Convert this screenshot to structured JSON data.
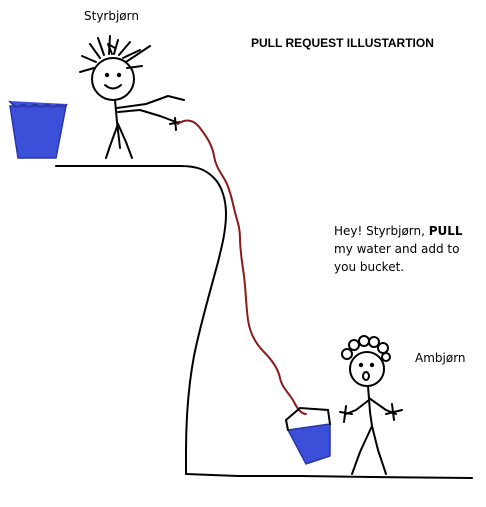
{
  "title": "PULL REQUEST ILLUSTARTION",
  "characters": {
    "top": {
      "name": "Styrbjørn"
    },
    "bottom": {
      "name": "Ambjørn"
    }
  },
  "speech": {
    "line1_prefix": "Hey! Styrbjørn, ",
    "line1_bold": "PULL",
    "line2": "my water and add to",
    "line3": "you bucket."
  },
  "colors": {
    "line": "#000000",
    "water": "#3b4fd8",
    "water_light": "#5a6ee8",
    "rope": "#8b1a1a",
    "background": "#ffffff"
  }
}
